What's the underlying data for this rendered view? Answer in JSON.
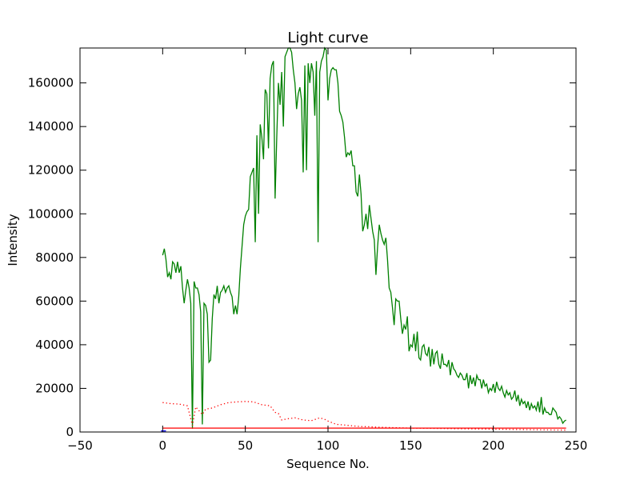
{
  "chart_data": {
    "type": "line",
    "title": "Light curve",
    "xlabel": "Sequence No.",
    "ylabel": "Intensity",
    "xlim": [
      -50,
      250
    ],
    "ylim": [
      0,
      176000
    ],
    "xticks": [
      -50,
      0,
      50,
      100,
      150,
      200,
      250
    ],
    "yticks": [
      0,
      20000,
      40000,
      60000,
      80000,
      100000,
      120000,
      140000,
      160000
    ],
    "grid": false,
    "series": [
      {
        "color": "#008000",
        "style": "solid",
        "points": [
          [
            0,
            81000
          ],
          [
            1,
            84000
          ],
          [
            2,
            79000
          ],
          [
            3,
            71000
          ],
          [
            4,
            73000
          ],
          [
            5,
            70000
          ],
          [
            6,
            78000
          ],
          [
            7,
            77000
          ],
          [
            8,
            73000
          ],
          [
            9,
            78000
          ],
          [
            10,
            73000
          ],
          [
            11,
            76000
          ],
          [
            12,
            66000
          ],
          [
            13,
            59000
          ],
          [
            14,
            65000
          ],
          [
            15,
            70000
          ],
          [
            16,
            66000
          ],
          [
            17,
            59000
          ],
          [
            18,
            1500
          ],
          [
            19,
            69000
          ],
          [
            20,
            66000
          ],
          [
            21,
            66000
          ],
          [
            22,
            63000
          ],
          [
            23,
            55000
          ],
          [
            24,
            3500
          ],
          [
            25,
            59000
          ],
          [
            26,
            58000
          ],
          [
            27,
            54000
          ],
          [
            28,
            32000
          ],
          [
            29,
            33000
          ],
          [
            30,
            52000
          ],
          [
            31,
            63000
          ],
          [
            32,
            61000
          ],
          [
            33,
            67000
          ],
          [
            34,
            59000
          ],
          [
            35,
            64000
          ],
          [
            36,
            65000
          ],
          [
            37,
            67000
          ],
          [
            38,
            64000
          ],
          [
            39,
            66000
          ],
          [
            40,
            67000
          ],
          [
            41,
            64000
          ],
          [
            42,
            62000
          ],
          [
            43,
            54000
          ],
          [
            44,
            58000
          ],
          [
            45,
            54000
          ],
          [
            46,
            62000
          ],
          [
            47,
            75000
          ],
          [
            48,
            85000
          ],
          [
            49,
            95000
          ],
          [
            50,
            99000
          ],
          [
            51,
            101000
          ],
          [
            52,
            102000
          ],
          [
            53,
            117000
          ],
          [
            54,
            119000
          ],
          [
            55,
            121000
          ],
          [
            56,
            87000
          ],
          [
            57,
            136000
          ],
          [
            58,
            100000
          ],
          [
            59,
            141000
          ],
          [
            60,
            135000
          ],
          [
            61,
            125000
          ],
          [
            62,
            157000
          ],
          [
            63,
            155000
          ],
          [
            64,
            130000
          ],
          [
            65,
            162000
          ],
          [
            66,
            168000
          ],
          [
            67,
            170000
          ],
          [
            68,
            107000
          ],
          [
            69,
            135000
          ],
          [
            70,
            160000
          ],
          [
            71,
            150000
          ],
          [
            72,
            165000
          ],
          [
            73,
            140000
          ],
          [
            74,
            172000
          ],
          [
            75,
            174000
          ],
          [
            76,
            176000
          ],
          [
            77,
            176000
          ],
          [
            78,
            174000
          ],
          [
            79,
            166000
          ],
          [
            80,
            160000
          ],
          [
            81,
            148000
          ],
          [
            82,
            155000
          ],
          [
            83,
            158000
          ],
          [
            84,
            152000
          ],
          [
            85,
            119000
          ],
          [
            86,
            168000
          ],
          [
            87,
            120000
          ],
          [
            88,
            169000
          ],
          [
            89,
            160000
          ],
          [
            90,
            169000
          ],
          [
            91,
            165000
          ],
          [
            92,
            145000
          ],
          [
            93,
            170000
          ],
          [
            94,
            87000
          ],
          [
            95,
            165000
          ],
          [
            96,
            170000
          ],
          [
            97,
            172000
          ],
          [
            98,
            176000
          ],
          [
            99,
            175000
          ],
          [
            100,
            152000
          ],
          [
            101,
            162000
          ],
          [
            102,
            166000
          ],
          [
            103,
            167000
          ],
          [
            104,
            166000
          ],
          [
            105,
            166000
          ],
          [
            106,
            160000
          ],
          [
            107,
            147000
          ],
          [
            108,
            145000
          ],
          [
            109,
            142000
          ],
          [
            110,
            135000
          ],
          [
            111,
            126000
          ],
          [
            112,
            128000
          ],
          [
            113,
            127000
          ],
          [
            114,
            129000
          ],
          [
            115,
            122000
          ],
          [
            116,
            122000
          ],
          [
            117,
            110000
          ],
          [
            118,
            108000
          ],
          [
            119,
            118000
          ],
          [
            120,
            109000
          ],
          [
            121,
            92000
          ],
          [
            122,
            95000
          ],
          [
            123,
            100000
          ],
          [
            124,
            93000
          ],
          [
            125,
            104000
          ],
          [
            126,
            98000
          ],
          [
            127,
            92000
          ],
          [
            128,
            88000
          ],
          [
            129,
            72000
          ],
          [
            130,
            85000
          ],
          [
            131,
            95000
          ],
          [
            132,
            91000
          ],
          [
            133,
            88000
          ],
          [
            134,
            86000
          ],
          [
            135,
            89000
          ],
          [
            136,
            79000
          ],
          [
            137,
            66000
          ],
          [
            138,
            64000
          ],
          [
            139,
            57000
          ],
          [
            140,
            49000
          ],
          [
            141,
            61000
          ],
          [
            142,
            60000
          ],
          [
            143,
            60000
          ],
          [
            144,
            52000
          ],
          [
            145,
            45000
          ],
          [
            146,
            49000
          ],
          [
            147,
            47000
          ],
          [
            148,
            53000
          ],
          [
            149,
            37000
          ],
          [
            150,
            40000
          ],
          [
            151,
            39000
          ],
          [
            152,
            45000
          ],
          [
            153,
            37000
          ],
          [
            154,
            46000
          ],
          [
            155,
            34000
          ],
          [
            156,
            33000
          ],
          [
            157,
            39000
          ],
          [
            158,
            40000
          ],
          [
            159,
            36000
          ],
          [
            160,
            35000
          ],
          [
            161,
            39000
          ],
          [
            162,
            30000
          ],
          [
            163,
            38000
          ],
          [
            164,
            31000
          ],
          [
            165,
            36000
          ],
          [
            166,
            37000
          ],
          [
            167,
            31000
          ],
          [
            168,
            29000
          ],
          [
            169,
            36000
          ],
          [
            170,
            31000
          ],
          [
            171,
            31000
          ],
          [
            172,
            30000
          ],
          [
            173,
            33000
          ],
          [
            174,
            26000
          ],
          [
            175,
            32000
          ],
          [
            176,
            29000
          ],
          [
            177,
            28000
          ],
          [
            178,
            26000
          ],
          [
            179,
            25000
          ],
          [
            180,
            27000
          ],
          [
            181,
            26000
          ],
          [
            182,
            24000
          ],
          [
            183,
            24000
          ],
          [
            184,
            27000
          ],
          [
            185,
            20000
          ],
          [
            186,
            26000
          ],
          [
            187,
            22000
          ],
          [
            188,
            25000
          ],
          [
            189,
            21000
          ],
          [
            190,
            26000
          ],
          [
            191,
            24000
          ],
          [
            192,
            24000
          ],
          [
            193,
            20000
          ],
          [
            194,
            24000
          ],
          [
            195,
            21000
          ],
          [
            196,
            22000
          ],
          [
            197,
            18000
          ],
          [
            198,
            20000
          ],
          [
            199,
            19000
          ],
          [
            200,
            22000
          ],
          [
            201,
            18000
          ],
          [
            202,
            23000
          ],
          [
            203,
            20000
          ],
          [
            204,
            19000
          ],
          [
            205,
            21000
          ],
          [
            206,
            18000
          ],
          [
            207,
            16000
          ],
          [
            208,
            19000
          ],
          [
            209,
            17000
          ],
          [
            210,
            18000
          ],
          [
            211,
            15000
          ],
          [
            212,
            16000
          ],
          [
            213,
            19000
          ],
          [
            214,
            14000
          ],
          [
            215,
            17000
          ],
          [
            216,
            12000
          ],
          [
            217,
            15000
          ],
          [
            218,
            13000
          ],
          [
            219,
            14000
          ],
          [
            220,
            11000
          ],
          [
            221,
            14000
          ],
          [
            222,
            10000
          ],
          [
            223,
            13000
          ],
          [
            224,
            11000
          ],
          [
            225,
            12000
          ],
          [
            226,
            10000
          ],
          [
            227,
            14000
          ],
          [
            228,
            9000
          ],
          [
            229,
            16000
          ],
          [
            230,
            8000
          ],
          [
            231,
            11000
          ],
          [
            232,
            9000
          ],
          [
            233,
            9000
          ],
          [
            234,
            8000
          ],
          [
            235,
            8000
          ],
          [
            236,
            11000
          ],
          [
            237,
            10000
          ],
          [
            238,
            9000
          ],
          [
            239,
            6000
          ],
          [
            240,
            7000
          ],
          [
            241,
            6000
          ],
          [
            242,
            4000
          ],
          [
            243,
            5000
          ],
          [
            244,
            5500
          ]
        ]
      },
      {
        "color": "#ff0000",
        "style": "dotted",
        "points": [
          [
            0,
            13500
          ],
          [
            5,
            13000
          ],
          [
            10,
            12800
          ],
          [
            15,
            12000
          ],
          [
            18,
            3000
          ],
          [
            20,
            11500
          ],
          [
            24,
            8000
          ],
          [
            26,
            10500
          ],
          [
            30,
            11000
          ],
          [
            35,
            12500
          ],
          [
            40,
            13500
          ],
          [
            45,
            13800
          ],
          [
            50,
            14000
          ],
          [
            55,
            13800
          ],
          [
            60,
            12500
          ],
          [
            65,
            12000
          ],
          [
            68,
            9000
          ],
          [
            70,
            8500
          ],
          [
            72,
            5500
          ],
          [
            75,
            6000
          ],
          [
            80,
            6500
          ],
          [
            85,
            5500
          ],
          [
            90,
            5200
          ],
          [
            95,
            6500
          ],
          [
            98,
            5800
          ],
          [
            100,
            5000
          ],
          [
            105,
            3500
          ],
          [
            110,
            3200
          ],
          [
            115,
            2800
          ],
          [
            120,
            2500
          ],
          [
            125,
            2400
          ],
          [
            130,
            2200
          ],
          [
            140,
            2000
          ],
          [
            150,
            1800
          ],
          [
            160,
            1700
          ],
          [
            170,
            1600
          ],
          [
            180,
            1500
          ],
          [
            190,
            1400
          ],
          [
            200,
            1300
          ],
          [
            210,
            1200
          ],
          [
            220,
            1100
          ],
          [
            230,
            1000
          ],
          [
            240,
            900
          ],
          [
            244,
            900
          ]
        ]
      },
      {
        "color": "#ff0000",
        "style": "solid",
        "points": [
          [
            0,
            1800
          ],
          [
            244,
            1800
          ]
        ]
      },
      {
        "color": "#0000ff",
        "style": "solid",
        "points": [
          [
            -1,
            500
          ],
          [
            2,
            500
          ]
        ]
      }
    ]
  }
}
